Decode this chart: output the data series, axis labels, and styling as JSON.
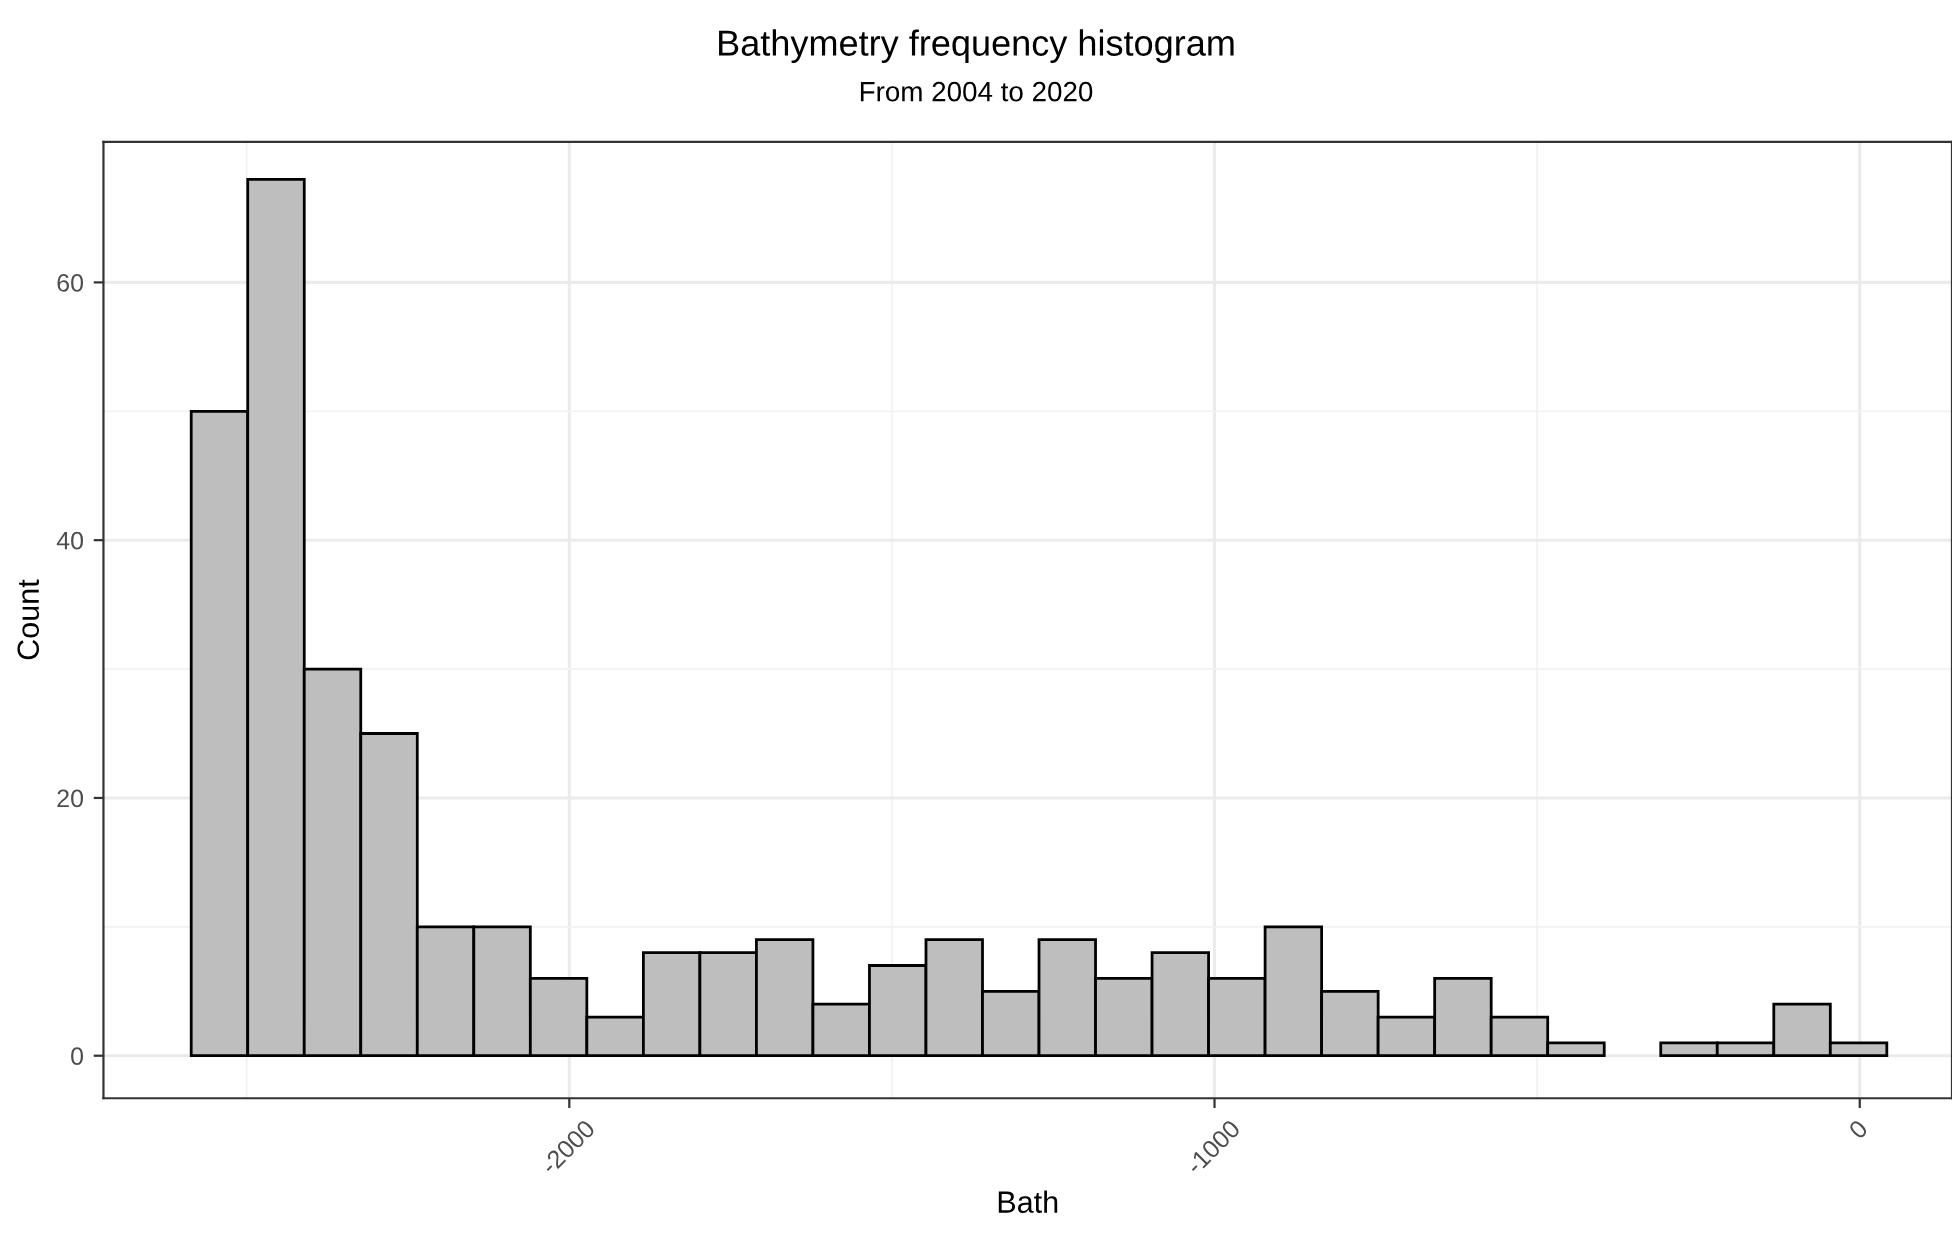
{
  "chart_data": {
    "type": "histogram",
    "title": "Bathymetry frequency histogram",
    "subtitle": "From 2004 to 2020",
    "xlabel": "Bath",
    "ylabel": "Count",
    "bins": [
      -2586,
      -2498.4,
      -2410.8,
      -2323.2,
      -2235.6,
      -2148,
      -2060.4,
      -1972.8,
      -1885.2,
      -1797.6,
      -1710,
      -1622.4,
      -1534.8,
      -1447.2,
      -1359.6,
      -1272,
      -1184.4,
      -1096.8,
      -1009.2,
      -921.6,
      -834,
      -746.4,
      -658.8,
      -571.2,
      -483.6,
      -396,
      -308.4,
      -220.8,
      -133.2,
      -45.6,
      42
    ],
    "values": [
      50,
      68,
      30,
      25,
      10,
      10,
      6,
      3,
      8,
      8,
      9,
      4,
      7,
      9,
      5,
      9,
      6,
      8,
      6,
      10,
      5,
      3,
      6,
      3,
      1,
      0,
      1,
      1,
      4,
      1
    ],
    "color": "#bebebe",
    "xlim": [
      -2722,
      143
    ],
    "xticks": [
      -2000,
      -1000,
      0
    ],
    "ylim": [
      -3.3,
      70.9
    ],
    "yticks": [
      0,
      20,
      40,
      60
    ],
    "grid": true
  }
}
